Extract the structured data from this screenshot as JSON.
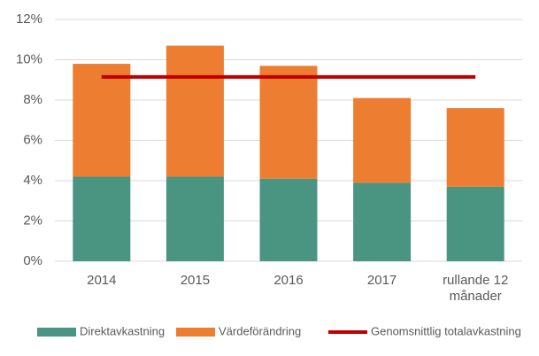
{
  "chart_data": {
    "type": "bar",
    "stacked": true,
    "categories": [
      "2014",
      "2015",
      "2016",
      "2017",
      "rullande 12 månader"
    ],
    "series": [
      {
        "name": "Direktavkastning",
        "color": "#4a9482",
        "values": [
          4.2,
          4.2,
          4.1,
          3.9,
          3.7
        ]
      },
      {
        "name": "Värdeförändring",
        "color": "#ed7d31",
        "values": [
          5.6,
          6.5,
          5.6,
          4.2,
          3.9
        ]
      },
      {
        "name": "Genomsnittlig totalavkastning",
        "color": "#c00000",
        "type": "line",
        "values": [
          9.15,
          9.15,
          9.15,
          9.15,
          9.15
        ]
      }
    ],
    "ylim": [
      0,
      12
    ],
    "yticks": [
      {
        "value": 0,
        "label": "0%"
      },
      {
        "value": 2,
        "label": "2%"
      },
      {
        "value": 4,
        "label": "4%"
      },
      {
        "value": 6,
        "label": "6%"
      },
      {
        "value": 8,
        "label": "8%"
      },
      {
        "value": 10,
        "label": "10%"
      },
      {
        "value": 12,
        "label": "12%"
      }
    ],
    "grid": true,
    "legend": "bottom"
  }
}
